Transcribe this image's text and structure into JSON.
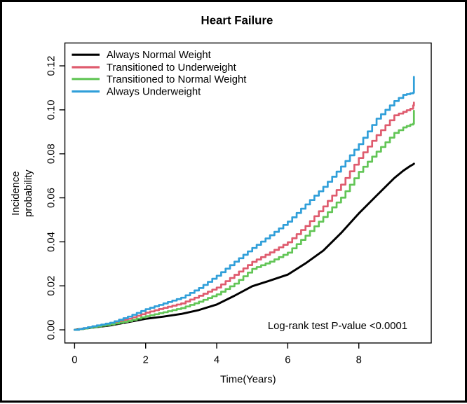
{
  "title": "Heart Failure",
  "chart_data": {
    "type": "line",
    "title": "Heart Failure",
    "xlabel": "Time(Years)",
    "ylabel": "Incidence probability",
    "ylabel_lines": [
      "Incidence",
      "probability"
    ],
    "annotation": "Log-rank test P-value <0.0001",
    "xlim": [
      0,
      9.6
    ],
    "ylim": [
      0,
      0.125
    ],
    "x_tick_labels": [
      "0",
      "2",
      "4",
      "6",
      "8"
    ],
    "x_tick_values": [
      0,
      2,
      4,
      6,
      8
    ],
    "y_tick_labels": [
      "0.00",
      "0.02",
      "0.04",
      "0.06",
      "0.08",
      "0.10",
      "0.12"
    ],
    "y_tick_values": [
      0,
      0.02,
      0.04,
      0.06,
      0.08,
      0.1,
      0.12
    ],
    "grid": false,
    "legend_position": "top-left",
    "x": [
      0,
      0.5,
      1,
      1.5,
      2,
      2.5,
      3,
      3.5,
      4,
      4.5,
      5,
      5.5,
      6,
      6.5,
      7,
      7.5,
      8,
      8.5,
      9,
      9.25,
      9.45,
      9.53,
      9.55
    ],
    "series": [
      {
        "name": "Always Normal Weight",
        "color": "#000000",
        "style": "smooth",
        "values": [
          0,
          0.001,
          0.002,
          0.0035,
          0.005,
          0.006,
          0.0072,
          0.009,
          0.0115,
          0.0155,
          0.0198,
          0.0224,
          0.0251,
          0.0302,
          0.036,
          0.044,
          0.0529,
          0.061,
          0.069,
          0.0723,
          0.0745,
          0.0752,
          0.0755
        ]
      },
      {
        "name": "Transitioned to Underweight",
        "color": "#DF5B6E",
        "style": "step",
        "values": [
          0,
          0.0015,
          0.003,
          0.005,
          0.0078,
          0.01,
          0.012,
          0.0155,
          0.0192,
          0.025,
          0.0309,
          0.0352,
          0.0398,
          0.0472,
          0.0561,
          0.066,
          0.0781,
          0.0885,
          0.0975,
          0.0991,
          0.1005,
          0.102,
          0.1033
        ]
      },
      {
        "name": "Transitioned to Normal Weight",
        "color": "#62C556",
        "style": "step",
        "values": [
          0,
          0.0012,
          0.0025,
          0.004,
          0.0062,
          0.008,
          0.0099,
          0.0128,
          0.0161,
          0.021,
          0.0277,
          0.031,
          0.0351,
          0.0428,
          0.0513,
          0.0601,
          0.0718,
          0.081,
          0.0895,
          0.092,
          0.0933,
          0.0937,
          0.0996
        ]
      },
      {
        "name": "Always Underweight",
        "color": "#309FD9",
        "style": "step",
        "values": [
          0,
          0.0016,
          0.0032,
          0.006,
          0.0094,
          0.012,
          0.0146,
          0.019,
          0.0246,
          0.031,
          0.0372,
          0.043,
          0.0492,
          0.057,
          0.065,
          0.0742,
          0.0844,
          0.096,
          0.104,
          0.1068,
          0.1075,
          0.1078,
          0.115
        ]
      }
    ]
  }
}
